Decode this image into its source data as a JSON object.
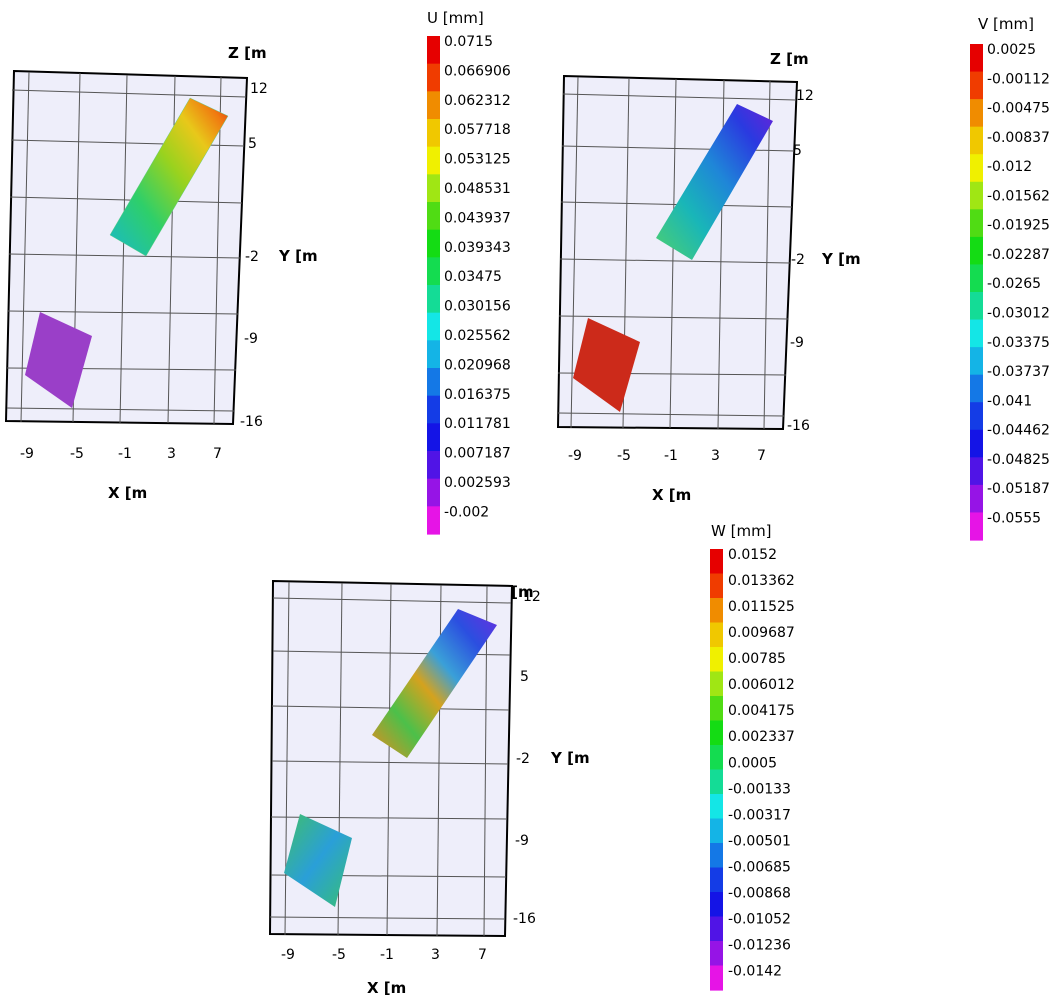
{
  "charts": [
    {
      "legend_title": "U [mm]",
      "legend_values": [
        "0.0715",
        "0.066906",
        "0.062312",
        "0.057718",
        "0.053125",
        "0.048531",
        "0.043937",
        "0.039343",
        "0.03475",
        "0.030156",
        "0.025562",
        "0.020968",
        "0.016375",
        "0.011781",
        "0.007187",
        "0.002593",
        "-0.002"
      ],
      "x_label": "X [m",
      "y_label": "Y [m",
      "x_ticks": [
        "-9",
        "-5",
        "-1",
        "3",
        "7"
      ],
      "y_ticks": [
        "12",
        "5",
        "-2",
        "-9",
        "-16"
      ],
      "corner_label": "Z [m"
    },
    {
      "legend_title": "V [mm]",
      "legend_values": [
        "0.0025",
        "-0.00112",
        "-0.00475",
        "-0.00837",
        "-0.012",
        "-0.01562",
        "-0.01925",
        "-0.02287",
        "-0.0265",
        "-0.03012",
        "-0.03375",
        "-0.03737",
        "-0.041",
        "-0.04462",
        "-0.04825",
        "-0.05187",
        "-0.0555"
      ],
      "x_label": "X [m",
      "y_label": "Y [m",
      "x_ticks": [
        "-9",
        "-5",
        "-1",
        "3",
        "7"
      ],
      "y_ticks": [
        "12",
        "5",
        "-2",
        "-9",
        "-16"
      ],
      "corner_label": "Z [m"
    },
    {
      "legend_title": "W [mm]",
      "legend_values": [
        "0.0152",
        "0.013362",
        "0.011525",
        "0.009687",
        "0.00785",
        "0.006012",
        "0.004175",
        "0.002337",
        "0.0005",
        "-0.00133",
        "-0.00317",
        "-0.00501",
        "-0.00685",
        "-0.00868",
        "-0.01052",
        "-0.01236",
        "-0.0142"
      ],
      "x_label": "X [m",
      "y_label": "Y [m",
      "x_ticks": [
        "-9",
        "-5",
        "-1",
        "3",
        "7"
      ],
      "y_ticks": [
        "12",
        "5",
        "-2",
        "-9",
        "-16"
      ],
      "corner_label": "Z [m"
    }
  ],
  "chart_data": [
    {
      "type": "heatmap",
      "quantity": "U [mm]",
      "xlabel": "X [m",
      "ylabel": "Y [m",
      "x_ticks": [
        -9,
        -5,
        -1,
        3,
        7
      ],
      "y_ticks": [
        12,
        5,
        -2,
        -9,
        -16
      ],
      "colorbar": {
        "min": -0.002,
        "max": 0.0715
      },
      "colors": {
        "top_strip": "gradient cyan-to-red",
        "bottom_block": "#9a3fc8"
      }
    },
    {
      "type": "heatmap",
      "quantity": "V [mm]",
      "xlabel": "X [m",
      "ylabel": "Y [m",
      "x_ticks": [
        -9,
        -5,
        -1,
        3,
        7
      ],
      "y_ticks": [
        12,
        5,
        -2,
        -9,
        -16
      ],
      "colorbar": {
        "min": -0.0555,
        "max": 0.0025
      },
      "colors": {
        "top_strip": "gradient green-to-violet",
        "bottom_block": "#cc2a1a"
      }
    },
    {
      "type": "heatmap",
      "quantity": "W [mm]",
      "xlabel": "X [m",
      "ylabel": "Y [m",
      "x_ticks": [
        -9,
        -5,
        -1,
        3,
        7
      ],
      "y_ticks": [
        12,
        5,
        -2,
        -9,
        -16
      ],
      "colorbar": {
        "min": -0.0142,
        "max": 0.0152
      },
      "colors": {
        "top_strip": "mottled green/orange/blue",
        "bottom_block": "mottled green/blue"
      }
    }
  ],
  "colorbar_colors": [
    "#e60000",
    "#f03c00",
    "#f08c00",
    "#f0c800",
    "#f0f000",
    "#a0e614",
    "#50dc14",
    "#14dc14",
    "#14dc50",
    "#14dc96",
    "#14e6e6",
    "#14b4e6",
    "#1478e6",
    "#143ce6",
    "#1414e6",
    "#5014e6",
    "#9614e6",
    "#e614e6"
  ]
}
